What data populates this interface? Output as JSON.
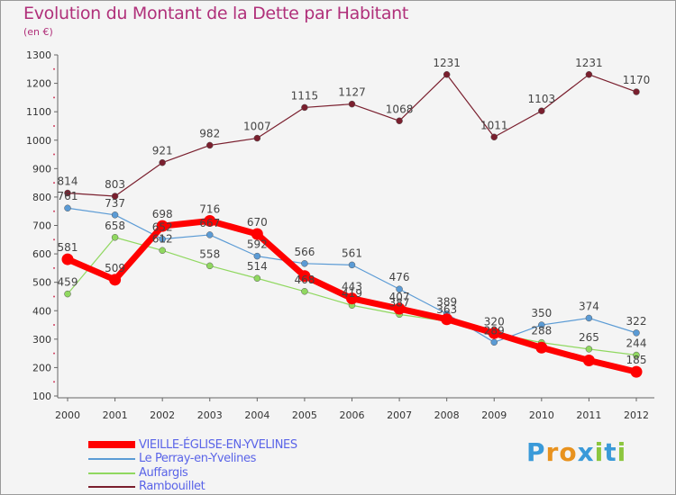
{
  "title": "Evolution du Montant de la Dette par Habitant",
  "subtitle": "(en €)",
  "logo": {
    "letters": [
      "P",
      "r",
      "o",
      "x",
      "i",
      "t",
      "i"
    ],
    "colors": [
      "#3a9ad9",
      "#e8921e",
      "#e8921e",
      "#3a9ad9",
      "#8cc63e",
      "#3a9ad9",
      "#8cc63e"
    ]
  },
  "chart_data": {
    "type": "line",
    "x": [
      "2000",
      "2001",
      "2002",
      "2003",
      "2004",
      "2005",
      "2006",
      "2007",
      "2008",
      "2009",
      "2010",
      "2011",
      "2012"
    ],
    "ylim": [
      100,
      1300
    ],
    "yticks": [
      100,
      200,
      300,
      400,
      500,
      600,
      700,
      800,
      900,
      1000,
      1100,
      1200,
      1300
    ],
    "grid": false,
    "legend_position": "bottom-left",
    "series": [
      {
        "name": "VIEILLE-ÉGLISE-EN-YVELINES",
        "color": "#ff0000",
        "width": 7,
        "values": [
          581,
          509,
          698,
          716,
          670,
          522,
          443,
          407,
          370,
          321,
          270,
          225,
          185
        ],
        "labels": [
          "581",
          "509",
          "698",
          "716",
          "670",
          "",
          "443",
          "407",
          "",
          "",
          "",
          "",
          "185"
        ]
      },
      {
        "name": "Le Perray-en-Yvelines",
        "color": "#5b9bd5",
        "width": 1.2,
        "values": [
          761,
          737,
          652,
          667,
          592,
          566,
          561,
          476,
          389,
          289,
          350,
          374,
          322
        ],
        "labels": [
          "761",
          "737",
          "652",
          "667",
          "592",
          "566",
          "561",
          "476",
          "389",
          "289",
          "350",
          "374",
          "322"
        ]
      },
      {
        "name": "Auffargis",
        "color": "#90d860",
        "width": 1.2,
        "values": [
          459,
          658,
          612,
          558,
          514,
          468,
          419,
          387,
          363,
          320,
          288,
          265,
          244
        ],
        "labels": [
          "459",
          "658",
          "612",
          "558",
          "514",
          "468",
          "419",
          "387",
          "363",
          "320",
          "288",
          "265",
          "244"
        ]
      },
      {
        "name": "Rambouillet",
        "color": "#7a1f2e",
        "width": 1.2,
        "values": [
          814,
          803,
          921,
          982,
          1007,
          1115,
          1127,
          1068,
          1231,
          1011,
          1103,
          1231,
          1170
        ],
        "labels": [
          "814",
          "803",
          "921",
          "982",
          "1007",
          "1115",
          "1127",
          "1068",
          "1231",
          "1011",
          "1103",
          "1231",
          "1170"
        ]
      }
    ]
  }
}
